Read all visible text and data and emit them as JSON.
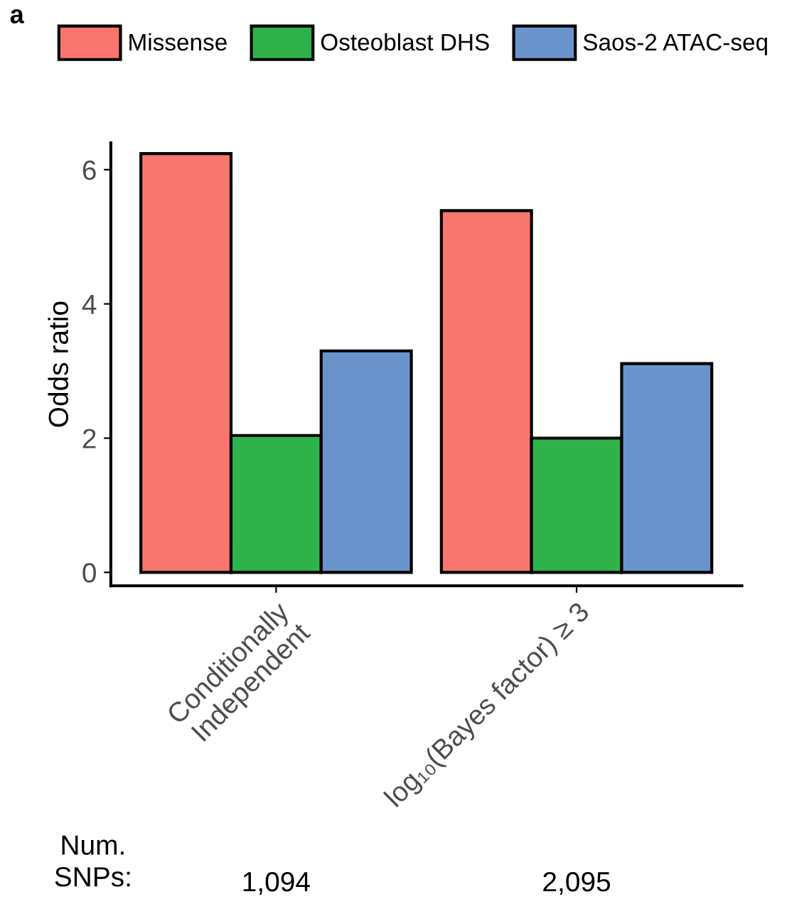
{
  "chart_data": {
    "type": "bar",
    "ylabel": "Odds ratio",
    "categories": [
      "Conditionally\nIndependent",
      "log₁₀(Bayes factor) ≥ 3"
    ],
    "series": [
      {
        "name": "Missense",
        "color": "#f8766d",
        "values": [
          6.24,
          5.39
        ]
      },
      {
        "name": "Osteoblast DHS",
        "color": "#2db34a",
        "values": [
          2.04,
          2.0
        ]
      },
      {
        "name": "Saos-2 ATAC-seq",
        "color": "#6a93cc",
        "values": [
          3.3,
          3.11
        ]
      }
    ],
    "ylim": [
      -0.2,
      6.4
    ],
    "yticks": [
      0,
      2,
      4,
      6
    ],
    "grid": false,
    "legend": "top",
    "annotations": [
      "a",
      "Num.\nSNPs:",
      "1,094",
      "2,095"
    ]
  }
}
